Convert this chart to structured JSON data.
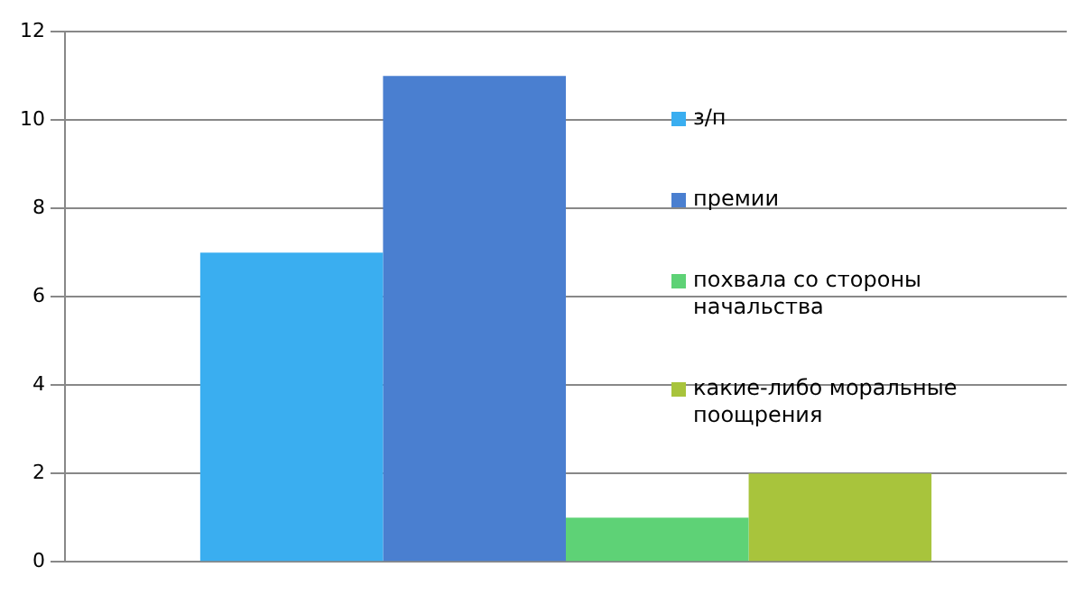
{
  "chart_data": {
    "type": "bar",
    "categories": [
      null
    ],
    "series": [
      {
        "name": "з/п",
        "color": "#3aaef0",
        "values": [
          7
        ]
      },
      {
        "name": "премии",
        "color": "#4a7fd0",
        "values": [
          11
        ]
      },
      {
        "name": "похвала со стороны начальства",
        "color": "#5ed276",
        "values": [
          1
        ]
      },
      {
        "name": "какие-либо моральные поощрения",
        "color": "#a8c43c",
        "values": [
          2
        ]
      }
    ],
    "ylim": [
      0,
      12
    ],
    "yticks": [
      0,
      2,
      4,
      6,
      8,
      10,
      12
    ],
    "grid": "y",
    "legend": "right"
  }
}
